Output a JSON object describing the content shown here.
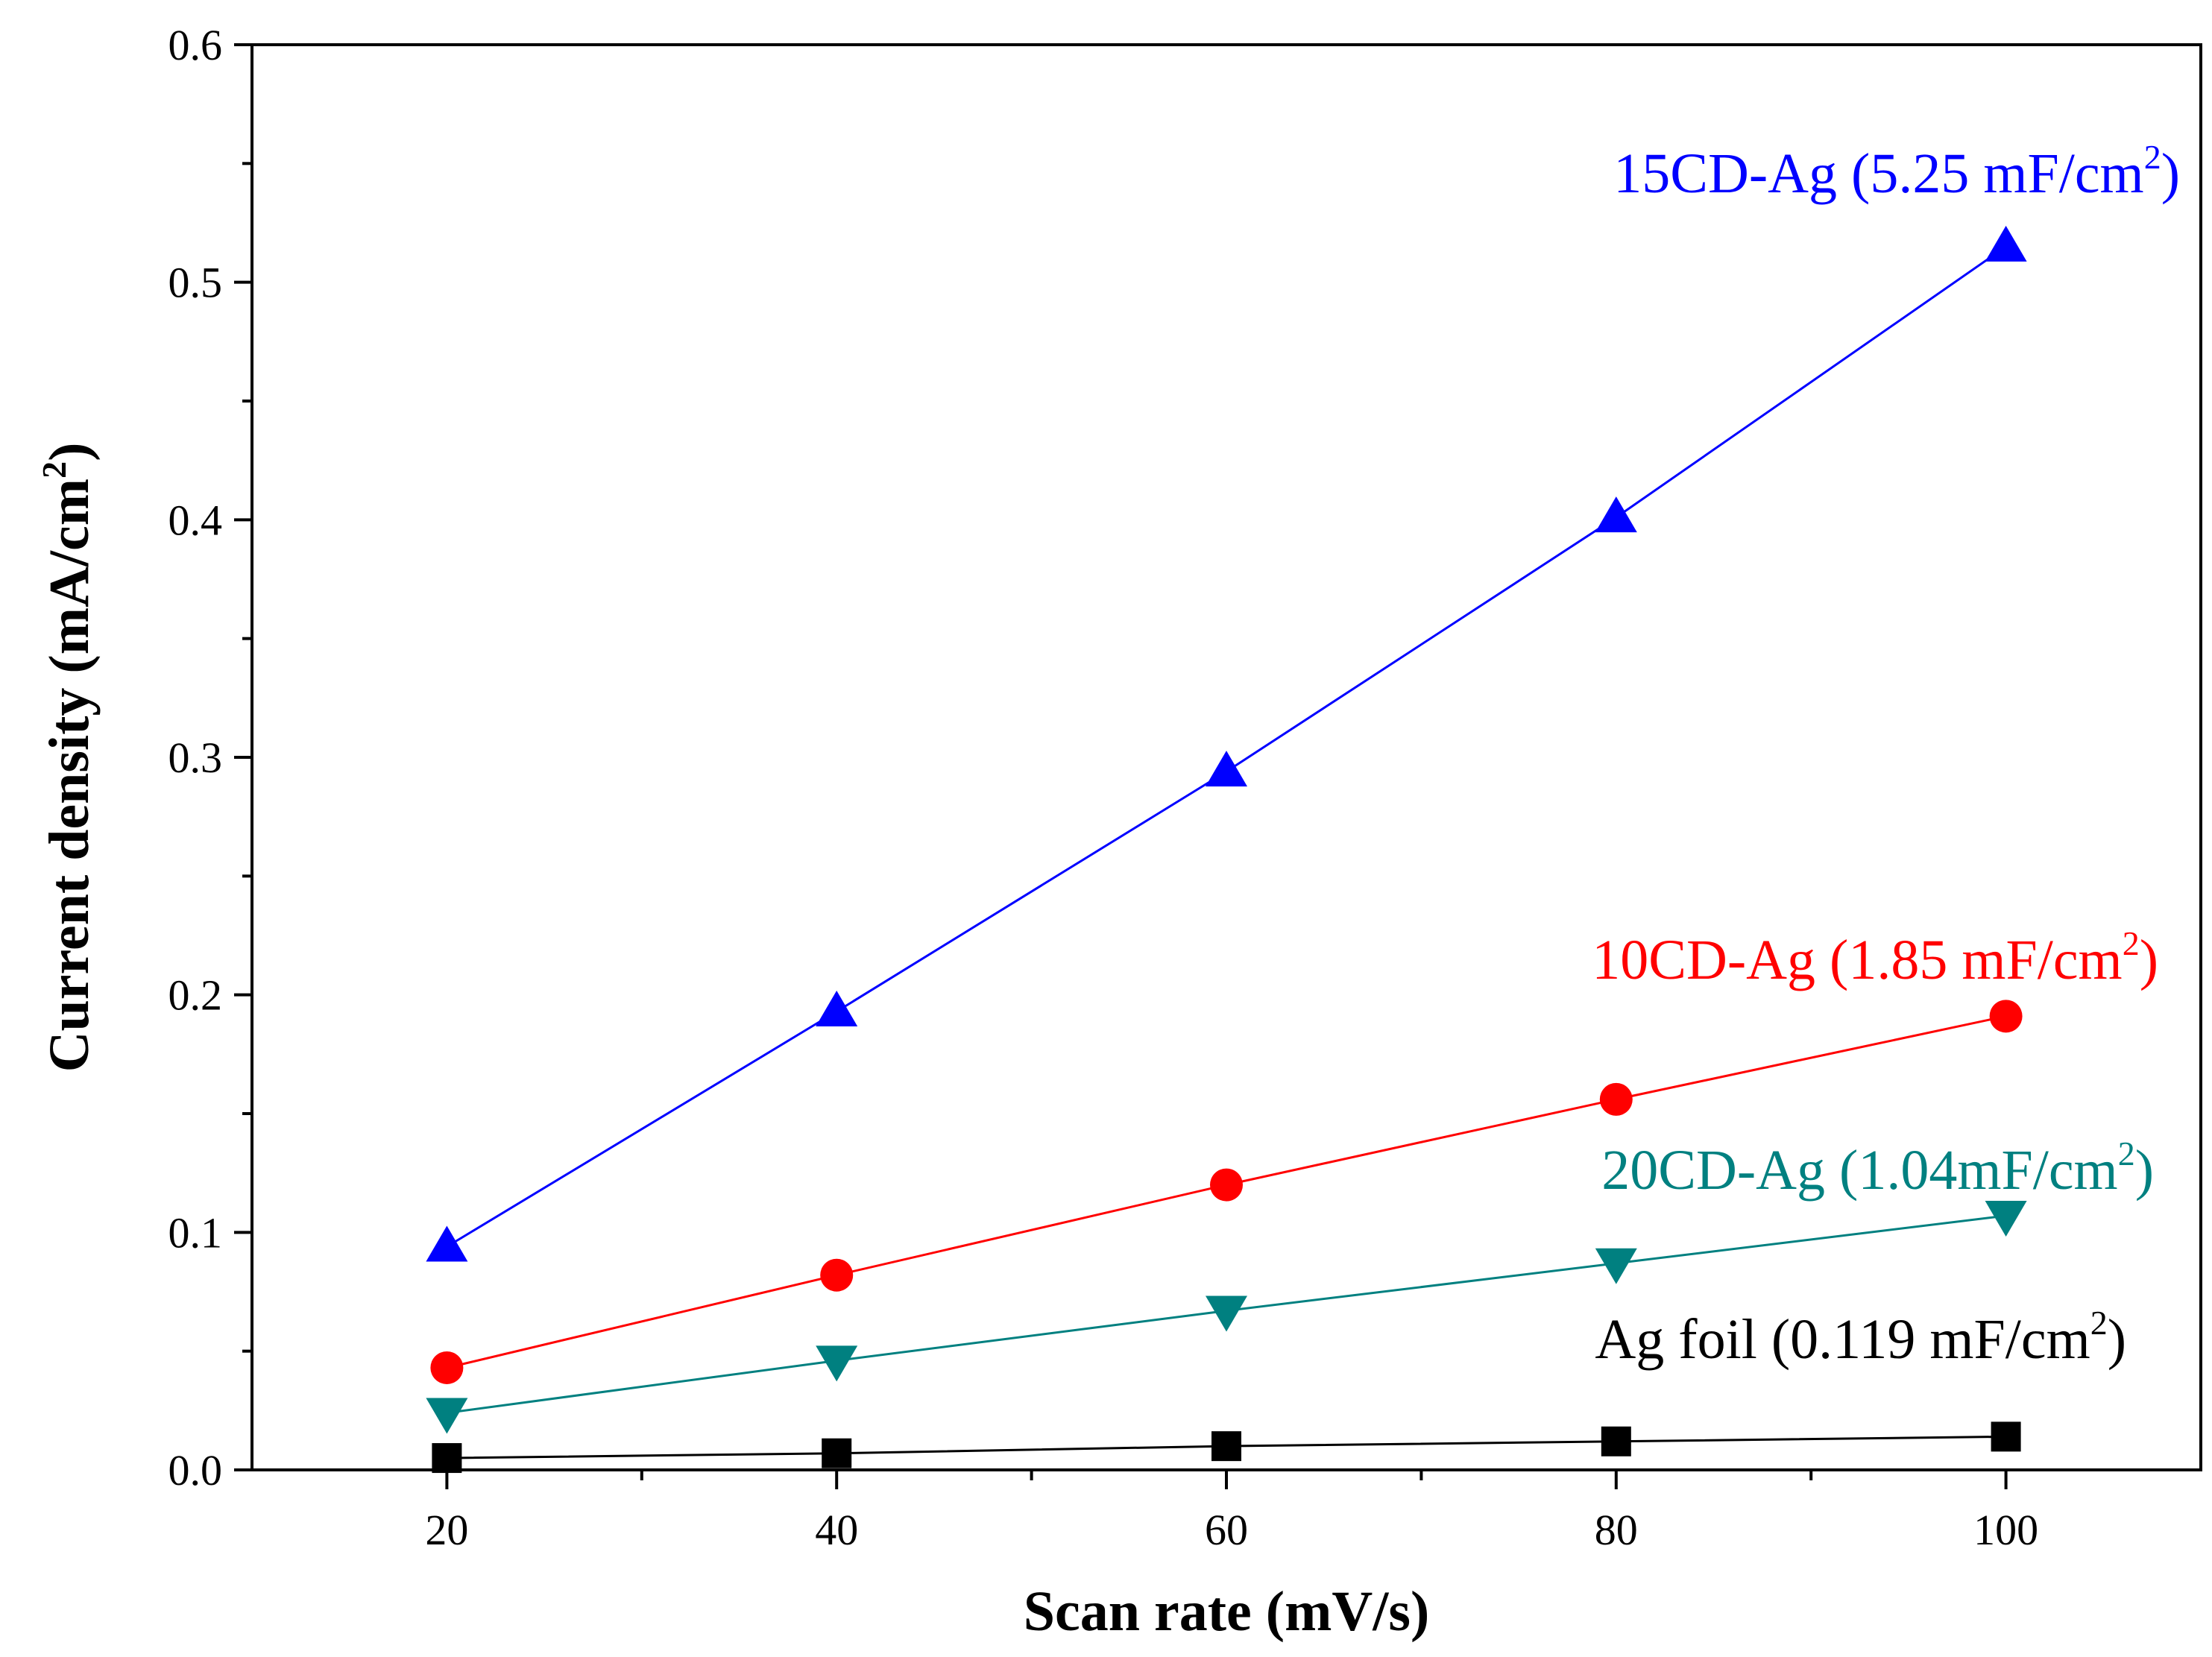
{
  "chart_data": {
    "type": "line",
    "xlabel": "Scan rate (mV/s)",
    "ylabel_main": "Current density (mA/cm",
    "ylabel_sup": "2",
    "ylabel_close": ")",
    "xlim": [
      10,
      110
    ],
    "ylim": [
      0.0,
      0.6
    ],
    "x_ticks": [
      20,
      40,
      60,
      80,
      100
    ],
    "x_minor_ticks": [
      30,
      50,
      70,
      90
    ],
    "y_ticks": [
      "0.0",
      "0.1",
      "0.2",
      "0.3",
      "0.4",
      "0.5",
      "0.6"
    ],
    "x": [
      20,
      40,
      60,
      80,
      100
    ],
    "series": [
      {
        "name": "15CD-Ag",
        "label_main": "15CD-Ag (5.25 mF/cm",
        "label_sup": "2",
        "label_close": ")",
        "marker": "triangle-up",
        "color": "#0000ff",
        "values": [
          0.094,
          0.193,
          0.294,
          0.401,
          0.515
        ]
      },
      {
        "name": "10CD-Ag",
        "label_main": "10CD-Ag (1.85 mF/cm",
        "label_sup": "2",
        "label_close": ")",
        "marker": "circle",
        "color": "#ff0000",
        "values": [
          0.043,
          0.082,
          0.12,
          0.156,
          0.191
        ]
      },
      {
        "name": "20CD-Ag",
        "label_main": "20CD-Ag (1.04mF/cm",
        "label_sup": "2",
        "label_close": ")",
        "marker": "triangle-down",
        "color": "#008080",
        "values": [
          0.024,
          0.046,
          0.067,
          0.087,
          0.107
        ]
      },
      {
        "name": "Ag foil",
        "label_main": "Ag foil (0.119 mF/cm",
        "label_sup": "2",
        "label_close": ")",
        "marker": "square",
        "color": "#000000",
        "values": [
          0.005,
          0.007,
          0.01,
          0.012,
          0.014
        ]
      }
    ]
  }
}
